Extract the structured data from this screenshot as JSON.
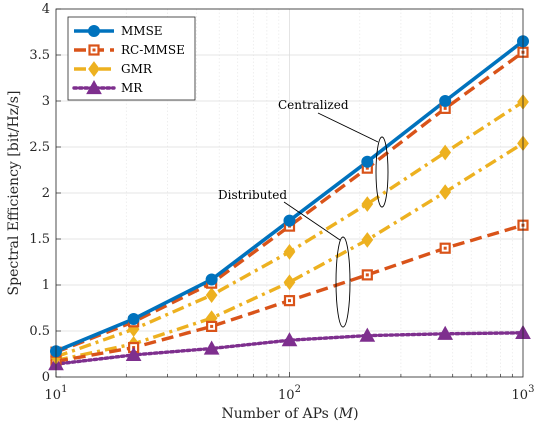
{
  "chart_data": {
    "type": "line",
    "title": "",
    "xlabel": "Number of APs (",
    "xlabel_var": "M",
    "xlabel_end": ")",
    "ylabel": "Spectral Efficiency [bit/Hz/s]",
    "xscale": "log",
    "xlim": [
      10,
      1000
    ],
    "ylim": [
      0,
      4
    ],
    "grid": true,
    "legend_position": "top-left",
    "x_tick_labels": [
      {
        "base": "10",
        "exp": "1"
      },
      {
        "base": "10",
        "exp": "2"
      },
      {
        "base": "10",
        "exp": "3"
      }
    ],
    "y_ticks": [
      "0",
      "0.5",
      "1",
      "1.5",
      "2",
      "2.5",
      "3",
      "3.5",
      "4"
    ],
    "x": [
      10,
      21.5,
      46.4,
      100,
      215.4,
      464.2,
      1000
    ],
    "series": [
      {
        "name": "MMSE",
        "group": "Centralized",
        "color": "#0072BD",
        "marker": "circle",
        "dash": "solid",
        "values": [
          0.28,
          0.63,
          1.06,
          1.7,
          2.34,
          3.0,
          3.65
        ]
      },
      {
        "name": "RC-MMSE",
        "group": "Centralized",
        "color": "#D95319",
        "marker": "square",
        "dash": "dashed",
        "values": [
          0.27,
          0.6,
          1.02,
          1.64,
          2.27,
          2.92,
          3.53
        ]
      },
      {
        "name": "GMR",
        "group": "Centralized",
        "color": "#EDB120",
        "marker": "diamond",
        "dash": "dashdot",
        "values": [
          0.22,
          0.52,
          0.89,
          1.36,
          1.88,
          2.44,
          2.99
        ]
      },
      {
        "name": "MR",
        "group": "Distributed",
        "color": "#7E2F8E",
        "marker": "triangle",
        "dash": "dotted",
        "values": [
          0.14,
          0.24,
          0.31,
          0.4,
          0.45,
          0.47,
          0.48
        ]
      },
      {
        "name": "",
        "group": "Distributed",
        "color": "#D95319",
        "marker": "square",
        "dash": "dashed",
        "values": [
          0.17,
          0.32,
          0.55,
          0.83,
          1.11,
          1.4,
          1.65
        ]
      },
      {
        "name": "",
        "group": "Distributed",
        "color": "#EDB120",
        "marker": "diamond",
        "dash": "dashdot",
        "values": [
          0.18,
          0.36,
          0.64,
          1.03,
          1.49,
          2.01,
          2.54
        ]
      }
    ],
    "annotations": [
      {
        "text": "Centralized"
      },
      {
        "text": "Distributed"
      }
    ]
  }
}
